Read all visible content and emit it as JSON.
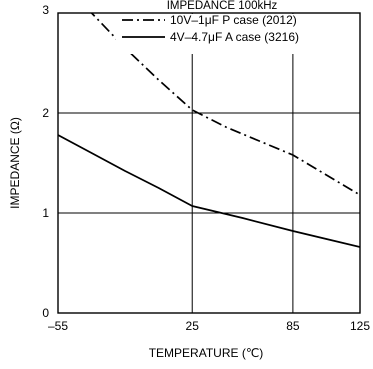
{
  "chart_data": {
    "type": "line",
    "title": "IMPEDANCE  100kHz",
    "xlabel": "TEMPERATURE (℃)",
    "ylabel": "IMPEDANCE (Ω)",
    "x_ticks": [
      -55,
      25,
      85,
      125
    ],
    "x_tick_labels": [
      "–55",
      "25",
      "85",
      "125"
    ],
    "y_ticks": [
      0,
      1,
      2,
      3
    ],
    "y_tick_labels": [
      "0",
      "1",
      "2",
      "3"
    ],
    "xlim": [
      -55,
      125
    ],
    "ylim": [
      0,
      3
    ],
    "grid": true,
    "legend_position": "top-right",
    "series": [
      {
        "name": "10V–1μF  P case  (2012)",
        "style": "dash-dot",
        "color": "#000000",
        "x": [
          -55,
          -35,
          -15,
          5,
          25,
          45,
          65,
          85,
          105,
          125
        ],
        "y": [
          3.35,
          3.0,
          2.65,
          2.33,
          2.03,
          1.86,
          1.72,
          1.58,
          1.38,
          1.18
        ]
      },
      {
        "name": "4V–4.7μF  A case  (3216)",
        "style": "solid",
        "color": "#000000",
        "x": [
          -55,
          -35,
          -15,
          5,
          25,
          55,
          85,
          105,
          125
        ],
        "y": [
          1.78,
          1.6,
          1.42,
          1.25,
          1.07,
          0.95,
          0.82,
          0.74,
          0.66
        ]
      }
    ]
  }
}
